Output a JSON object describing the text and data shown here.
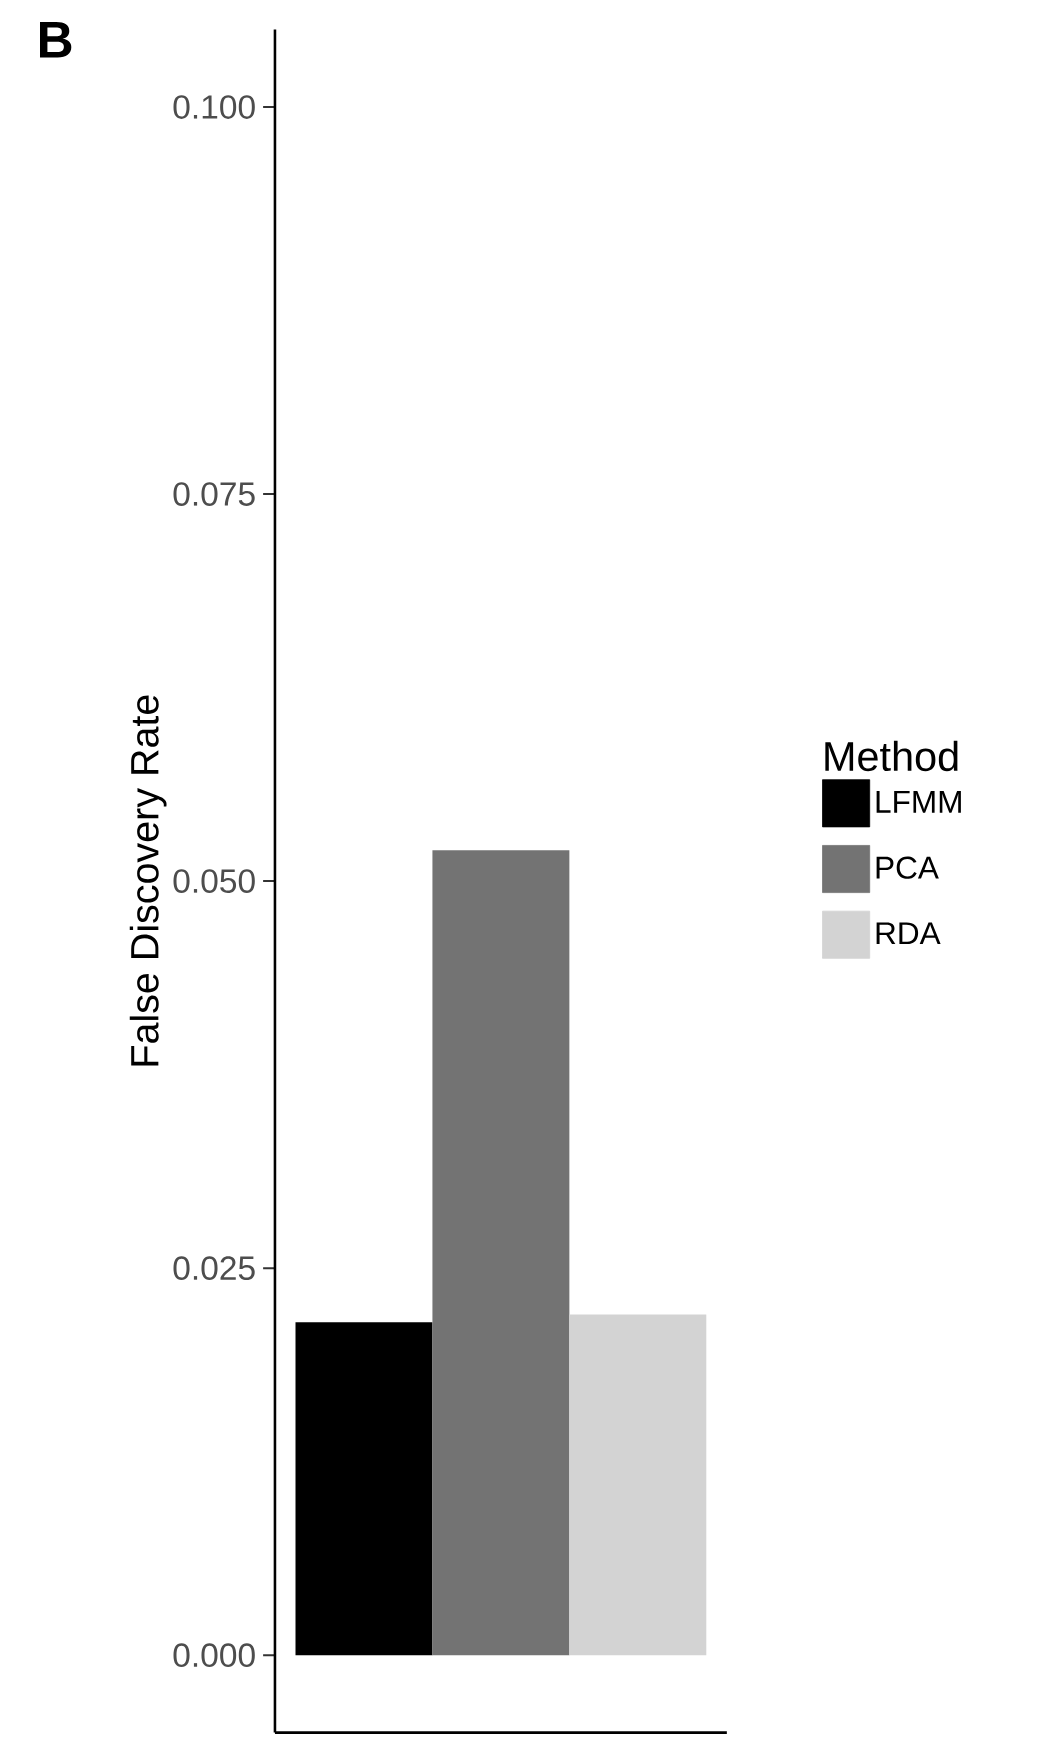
{
  "chart_data": {
    "type": "bar",
    "title": "B",
    "ylabel": "False Discovery Rate",
    "legend_title": "Method",
    "categories": [
      null
    ],
    "series": [
      {
        "name": "LFMM",
        "color": "#000000",
        "values": [
          0.0215
        ]
      },
      {
        "name": "PCA",
        "color": "#737373",
        "values": [
          0.052
        ]
      },
      {
        "name": "RDA",
        "color": "#d3d3d3",
        "values": [
          0.022
        ]
      }
    ],
    "ylim": [
      -0.005,
      0.105
    ],
    "yticks": [
      {
        "value": 0,
        "label": "0.000"
      },
      {
        "value": 0.025,
        "label": "0.025"
      },
      {
        "value": 0.05,
        "label": "0.050"
      },
      {
        "value": 0.075,
        "label": "0.075"
      },
      {
        "value": 0.1,
        "label": "0.100"
      }
    ],
    "grid": false,
    "legend": "right"
  }
}
